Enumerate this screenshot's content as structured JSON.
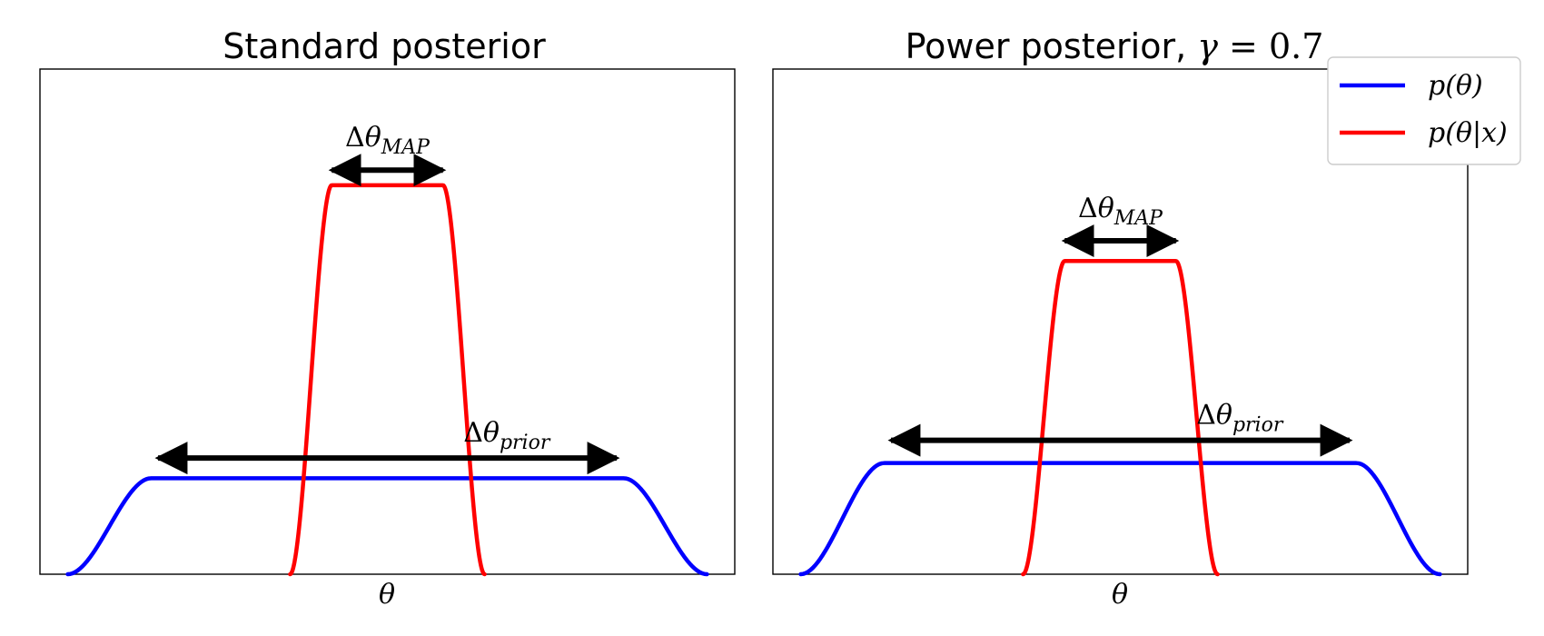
{
  "colors": {
    "prior": "#0000ff",
    "posterior": "#ff0000",
    "arrow": "#000000"
  },
  "legend": {
    "placement": "upper-right",
    "entries": [
      {
        "label": "p(θ)",
        "color": "#0000ff"
      },
      {
        "label": "p(θ|x)",
        "color": "#ff0000"
      }
    ]
  },
  "chart_data": [
    {
      "type": "line",
      "title": "Standard posterior",
      "xlabel": "θ",
      "ylabel": "",
      "xlim": [
        0,
        1
      ],
      "ylim": [
        0,
        1
      ],
      "ticks": false,
      "series": [
        {
          "name": "p(θ)",
          "color": "#0000ff",
          "x_range": [
            0.04,
            0.96
          ],
          "plateau_start": 0.16,
          "plateau_end": 0.84,
          "height": 0.19
        },
        {
          "name": "p(θ|x)",
          "color": "#ff0000",
          "x_range": [
            0.36,
            0.64
          ],
          "plateau_start": 0.42,
          "plateau_end": 0.58,
          "height": 0.77
        }
      ],
      "annotations": [
        {
          "text": "Δθ",
          "sub": "MAP",
          "x_start": 0.42,
          "x_end": 0.58,
          "y": 0.8
        },
        {
          "text": "Δθ",
          "sub": "prior",
          "x_start": 0.17,
          "x_end": 0.83,
          "y": 0.23
        }
      ]
    },
    {
      "type": "line",
      "title_text": "Power posterior, ",
      "title_math": "γ",
      "title_value": "0.7",
      "xlabel": "θ",
      "ylabel": "",
      "xlim": [
        0,
        1
      ],
      "ylim": [
        0,
        1
      ],
      "ticks": false,
      "series": [
        {
          "name": "p(θ)",
          "color": "#0000ff",
          "x_range": [
            0.04,
            0.96
          ],
          "plateau_start": 0.16,
          "plateau_end": 0.84,
          "height": 0.22
        },
        {
          "name": "p(θ|x)",
          "color": "#ff0000",
          "x_range": [
            0.36,
            0.64
          ],
          "plateau_start": 0.42,
          "plateau_end": 0.58,
          "height": 0.62
        }
      ],
      "annotations": [
        {
          "text": "Δθ",
          "sub": "MAP",
          "x_start": 0.42,
          "x_end": 0.58,
          "y": 0.66
        },
        {
          "text": "Δθ",
          "sub": "prior",
          "x_start": 0.17,
          "x_end": 0.83,
          "y": 0.265
        }
      ]
    }
  ]
}
